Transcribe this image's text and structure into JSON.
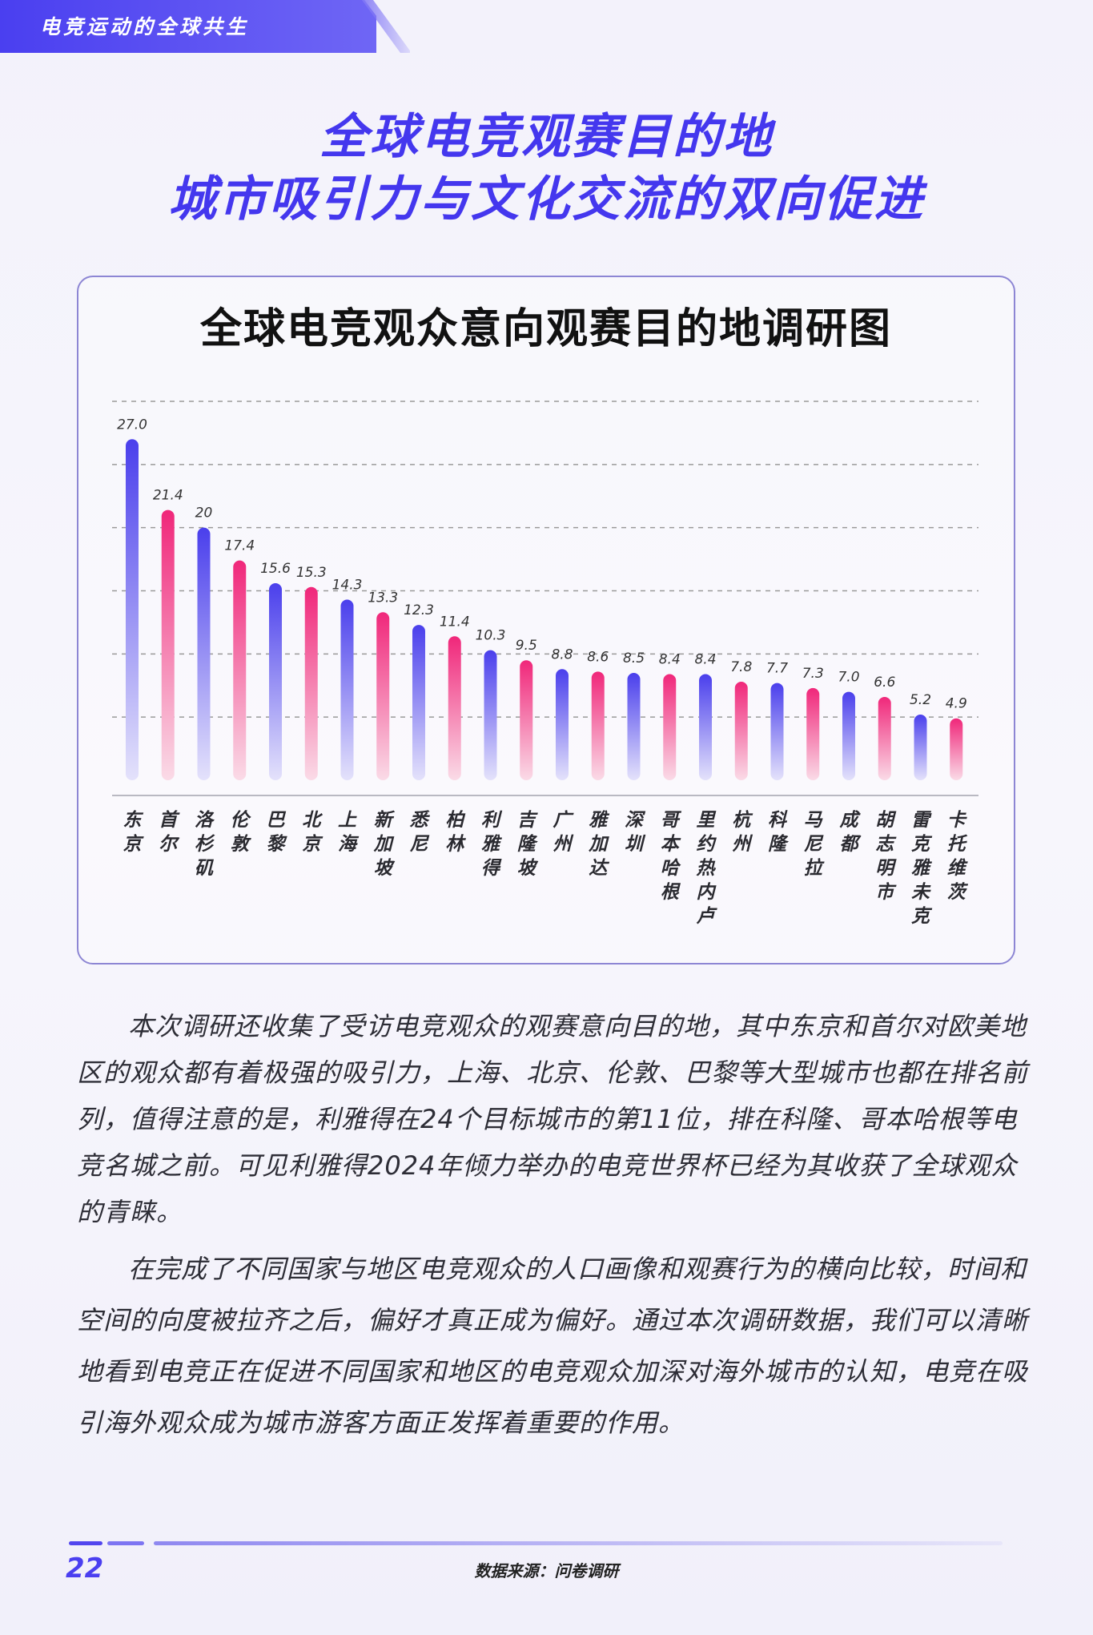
{
  "header": {
    "section_label": "电竞运动的全球共生",
    "title_line1": "全球电竞观赛目的地",
    "title_line2": "城市吸引力与文化交流的双向促进"
  },
  "chart_data": {
    "type": "bar",
    "title": "全球电竞观众意向观赛目的地调研图",
    "categories": [
      "东京",
      "首尔",
      "洛杉矶",
      "伦敦",
      "巴黎",
      "北京",
      "上海",
      "新加坡",
      "悉尼",
      "柏林",
      "利雅得",
      "吉隆坡",
      "广州",
      "雅加达",
      "深圳",
      "哥本哈根",
      "里约热内卢",
      "杭州",
      "科隆",
      "马尼拉",
      "成都",
      "胡志明市",
      "雷克雅未克",
      "卡托维茨"
    ],
    "values": [
      27.0,
      21.4,
      20,
      17.4,
      15.6,
      15.3,
      14.3,
      13.3,
      12.3,
      11.4,
      10.3,
      9.5,
      8.8,
      8.6,
      8.5,
      8.4,
      8.4,
      7.8,
      7.7,
      7.3,
      7.0,
      6.6,
      5.2,
      4.9
    ],
    "value_labels": [
      "27.0",
      "21.4",
      "20",
      "17.4",
      "15.6",
      "15.3",
      "14.3",
      "13.3",
      "12.3",
      "11.4",
      "10.3",
      "9.5",
      "8.8",
      "8.6",
      "8.5",
      "8.4",
      "8.4",
      "7.8",
      "7.7",
      "7.3",
      "7.0",
      "6.6",
      "5.2",
      "4.9"
    ],
    "ylim": [
      0,
      30
    ],
    "grid": true,
    "colors": {
      "blue": "#4a3fec",
      "pink": "#f0277a",
      "grid": "#9a9a9a"
    }
  },
  "body": {
    "paragraph1": "本次调研还收集了受访电竞观众的观赛意向目的地，其中东京和首尔对欧美地区的观众都有着极强的吸引力，上海、北京、伦敦、巴黎等大型城市也都在排名前列，值得注意的是，利雅得在24个目标城市的第11位，排在科隆、哥本哈根等电竞名城之前。可见利雅得2024年倾力举办的电竞世界杯已经为其收获了全球观众的青睐。",
    "paragraph2": "在完成了不同国家与地区电竞观众的人口画像和观赛行为的横向比较，时间和空间的向度被拉齐之后，偏好才真正成为偏好。通过本次调研数据，我们可以清晰地看到电竞正在促进不同国家和地区的电竞观众加深对海外城市的认知，电竞在吸引海外观众成为城市游客方面正发挥着重要的作用。"
  },
  "footer": {
    "page_number": "22",
    "source": "数据来源：问卷调研"
  }
}
